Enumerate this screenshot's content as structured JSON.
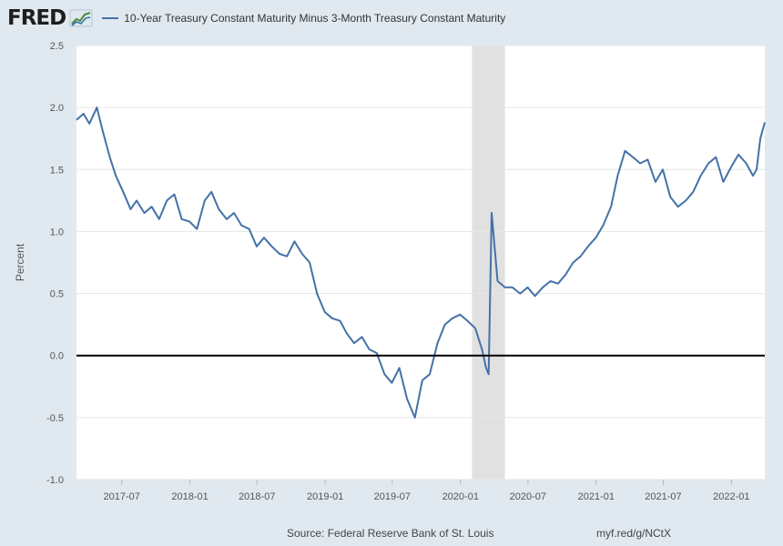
{
  "header": {
    "logo_text": "FRED",
    "logo_icon": "line-chart-icon"
  },
  "footer": {
    "source": "Source: Federal Reserve Bank of St. Louis",
    "short_url": "myf.red/g/NCtX"
  },
  "colors": {
    "series": "#4572a7",
    "zero_line": "#000000",
    "recession": "#e1e1e1",
    "grid": "#e6e6e6",
    "background": "#e1e9f0"
  },
  "chart_data": {
    "type": "line",
    "title": "",
    "xlabel": "",
    "ylabel": "Percent",
    "ylim": [
      -1.0,
      2.5
    ],
    "yticks": [
      -1.0,
      -0.5,
      0.0,
      0.5,
      1.0,
      1.5,
      2.0,
      2.5
    ],
    "ytick_labels": [
      "-1.0",
      "-0.5",
      "0.0",
      "0.5",
      "1.0",
      "1.5",
      "2.0",
      "2.5"
    ],
    "xlim": [
      "2017-03-01",
      "2022-04-01"
    ],
    "xticks": [
      "2017-07",
      "2018-01",
      "2018-07",
      "2019-01",
      "2019-07",
      "2020-01",
      "2020-07",
      "2021-01",
      "2021-07",
      "2022-01"
    ],
    "grid": true,
    "legend": "top-left",
    "recession_shading": [
      {
        "start": "2020-02-01",
        "end": "2020-04-30"
      }
    ],
    "series": [
      {
        "name": "10-Year Treasury Constant Maturity Minus 3-Month Treasury Constant Maturity",
        "x": [
          "2017-03-01",
          "2017-03-20",
          "2017-04-05",
          "2017-04-25",
          "2017-05-10",
          "2017-05-30",
          "2017-06-15",
          "2017-07-05",
          "2017-07-25",
          "2017-08-10",
          "2017-08-31",
          "2017-09-20",
          "2017-10-10",
          "2017-10-31",
          "2017-11-20",
          "2017-12-10",
          "2017-12-31",
          "2018-01-20",
          "2018-02-10",
          "2018-02-28",
          "2018-03-20",
          "2018-04-10",
          "2018-04-30",
          "2018-05-20",
          "2018-06-10",
          "2018-06-30",
          "2018-07-20",
          "2018-08-10",
          "2018-08-31",
          "2018-09-20",
          "2018-10-10",
          "2018-10-31",
          "2018-11-20",
          "2018-12-10",
          "2018-12-31",
          "2019-01-20",
          "2019-02-10",
          "2019-02-28",
          "2019-03-20",
          "2019-04-10",
          "2019-04-30",
          "2019-05-20",
          "2019-06-10",
          "2019-06-30",
          "2019-07-20",
          "2019-08-10",
          "2019-08-31",
          "2019-09-20",
          "2019-10-10",
          "2019-10-31",
          "2019-11-20",
          "2019-12-10",
          "2019-12-31",
          "2020-01-20",
          "2020-02-10",
          "2020-02-28",
          "2020-03-10",
          "2020-03-17",
          "2020-03-25",
          "2020-04-10",
          "2020-04-30",
          "2020-05-20",
          "2020-06-10",
          "2020-06-30",
          "2020-07-20",
          "2020-08-10",
          "2020-08-31",
          "2020-09-20",
          "2020-10-10",
          "2020-10-31",
          "2020-11-20",
          "2020-12-10",
          "2020-12-31",
          "2021-01-20",
          "2021-02-10",
          "2021-02-28",
          "2021-03-20",
          "2021-04-10",
          "2021-04-30",
          "2021-05-20",
          "2021-06-10",
          "2021-06-30",
          "2021-07-20",
          "2021-08-10",
          "2021-08-31",
          "2021-09-20",
          "2021-10-10",
          "2021-10-31",
          "2021-11-20",
          "2021-12-10",
          "2021-12-31",
          "2022-01-20",
          "2022-02-10",
          "2022-02-28",
          "2022-03-10",
          "2022-03-20",
          "2022-04-01"
        ],
        "y": [
          1.9,
          1.95,
          1.87,
          2.0,
          1.82,
          1.6,
          1.45,
          1.32,
          1.18,
          1.25,
          1.15,
          1.2,
          1.1,
          1.25,
          1.3,
          1.1,
          1.08,
          1.02,
          1.25,
          1.32,
          1.18,
          1.1,
          1.15,
          1.05,
          1.02,
          0.88,
          0.95,
          0.88,
          0.82,
          0.8,
          0.92,
          0.82,
          0.75,
          0.5,
          0.35,
          0.3,
          0.28,
          0.18,
          0.1,
          0.15,
          0.05,
          0.02,
          -0.15,
          -0.22,
          -0.1,
          -0.35,
          -0.5,
          -0.2,
          -0.15,
          0.1,
          0.25,
          0.3,
          0.33,
          0.28,
          0.22,
          0.05,
          -0.1,
          -0.15,
          1.15,
          0.6,
          0.55,
          0.55,
          0.5,
          0.55,
          0.48,
          0.55,
          0.6,
          0.58,
          0.65,
          0.75,
          0.8,
          0.88,
          0.95,
          1.05,
          1.2,
          1.45,
          1.65,
          1.6,
          1.55,
          1.58,
          1.4,
          1.5,
          1.28,
          1.2,
          1.25,
          1.32,
          1.45,
          1.55,
          1.6,
          1.4,
          1.52,
          1.62,
          1.55,
          1.45,
          1.5,
          1.75,
          1.88
        ]
      }
    ]
  }
}
